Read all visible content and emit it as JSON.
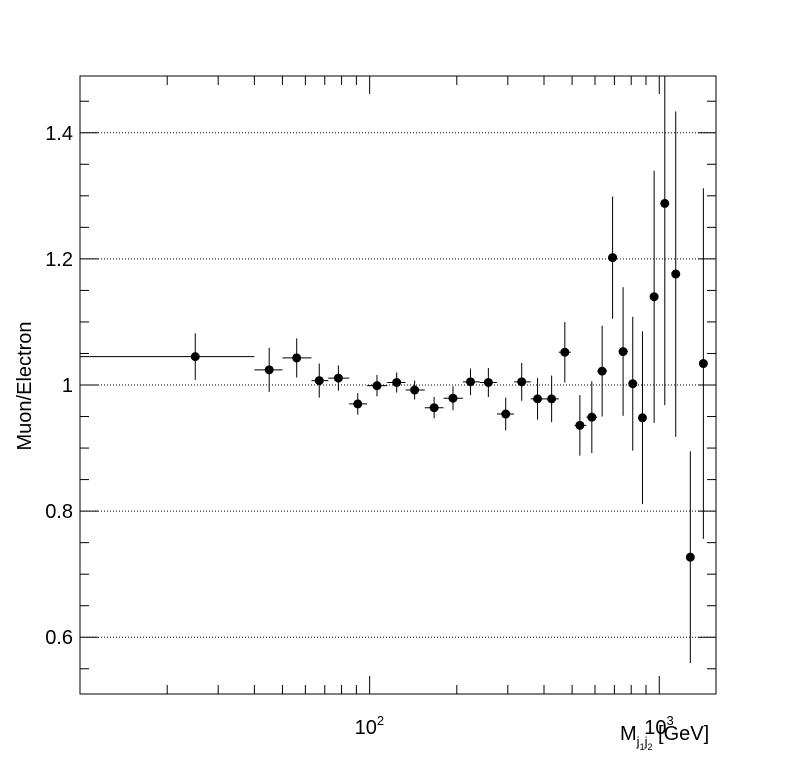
{
  "chart_data": {
    "type": "scatter",
    "title": "",
    "xlabel_parts": {
      "main": "M",
      "sub": "j",
      "subsub1": "1",
      "sub2": "j",
      "subsub2": "2",
      "unit": " [GeV]"
    },
    "ylabel": "Muon/Electron",
    "xscale": "log",
    "xlim": [
      10,
      1570
    ],
    "ylim": [
      0.51,
      1.49
    ],
    "y_gridlines": [
      0.6,
      0.8,
      1.0,
      1.2,
      1.4
    ],
    "y_tick_labels": [
      "0.6",
      "0.8",
      "1",
      "1.2",
      "1.4"
    ],
    "x_tick_labels": [
      {
        "base": "10",
        "exp": "2"
      },
      {
        "base": "10",
        "exp": "3"
      }
    ],
    "series": [
      {
        "name": "Muon/Electron",
        "points": [
          {
            "x": 25,
            "xlo": 10,
            "xhi": 40,
            "y": 1.045,
            "err": 0.037
          },
          {
            "x": 45,
            "xlo": 40,
            "xhi": 50,
            "y": 1.024,
            "err": 0.035
          },
          {
            "x": 56,
            "xlo": 50,
            "xhi": 63,
            "y": 1.043,
            "err": 0.031
          },
          {
            "x": 67,
            "xlo": 63,
            "xhi": 72,
            "y": 1.007,
            "err": 0.027
          },
          {
            "x": 78,
            "xlo": 72,
            "xhi": 85,
            "y": 1.011,
            "err": 0.02
          },
          {
            "x": 91,
            "xlo": 85,
            "xhi": 98,
            "y": 0.97,
            "err": 0.017
          },
          {
            "x": 106,
            "xlo": 98,
            "xhi": 115,
            "y": 0.999,
            "err": 0.017
          },
          {
            "x": 124,
            "xlo": 115,
            "xhi": 133,
            "y": 1.004,
            "err": 0.016
          },
          {
            "x": 143,
            "xlo": 133,
            "xhi": 155,
            "y": 0.992,
            "err": 0.015
          },
          {
            "x": 167,
            "xlo": 155,
            "xhi": 180,
            "y": 0.964,
            "err": 0.017
          },
          {
            "x": 194,
            "xlo": 180,
            "xhi": 210,
            "y": 0.979,
            "err": 0.019
          },
          {
            "x": 223,
            "xlo": 210,
            "xhi": 240,
            "y": 1.005,
            "err": 0.021
          },
          {
            "x": 257,
            "xlo": 240,
            "xhi": 275,
            "y": 1.004,
            "err": 0.023
          },
          {
            "x": 295,
            "xlo": 275,
            "xhi": 315,
            "y": 0.954,
            "err": 0.026
          },
          {
            "x": 335,
            "xlo": 315,
            "xhi": 360,
            "y": 1.005,
            "err": 0.03
          },
          {
            "x": 380,
            "xlo": 360,
            "xhi": 400,
            "y": 0.978,
            "err": 0.033
          },
          {
            "x": 425,
            "xlo": 400,
            "xhi": 450,
            "y": 0.978,
            "err": 0.037
          },
          {
            "x": 472,
            "xlo": 450,
            "xhi": 495,
            "y": 1.052,
            "err": 0.048
          },
          {
            "x": 532,
            "xlo": 510,
            "xhi": 560,
            "y": 0.936,
            "err": 0.048
          },
          {
            "x": 585,
            "xlo": 560,
            "xhi": 610,
            "y": 0.949,
            "err": 0.057
          },
          {
            "x": 635,
            "xlo": 610,
            "xhi": 660,
            "y": 1.022,
            "err": 0.072
          },
          {
            "x": 690,
            "xlo": 665,
            "xhi": 715,
            "y": 1.202,
            "err": 0.097
          },
          {
            "x": 750,
            "xlo": 725,
            "xhi": 780,
            "y": 1.053,
            "err": 0.102
          },
          {
            "x": 810,
            "xlo": 790,
            "xhi": 830,
            "y": 1.002,
            "err": 0.106
          },
          {
            "x": 875,
            "xlo": 855,
            "xhi": 895,
            "y": 0.948,
            "err": 0.137
          },
          {
            "x": 960,
            "xlo": 945,
            "xhi": 975,
            "y": 1.14,
            "err": 0.2
          },
          {
            "x": 1045,
            "xlo": 1030,
            "xhi": 1060,
            "y": 1.288,
            "err": 0.32
          },
          {
            "x": 1140,
            "xlo": 1125,
            "xhi": 1155,
            "y": 1.176,
            "err": 0.258
          },
          {
            "x": 1280,
            "xlo": 1265,
            "xhi": 1295,
            "y": 0.727,
            "err": 0.168
          },
          {
            "x": 1420,
            "xlo": 1405,
            "xhi": 1435,
            "y": 1.034,
            "err": 0.278
          }
        ]
      }
    ]
  }
}
